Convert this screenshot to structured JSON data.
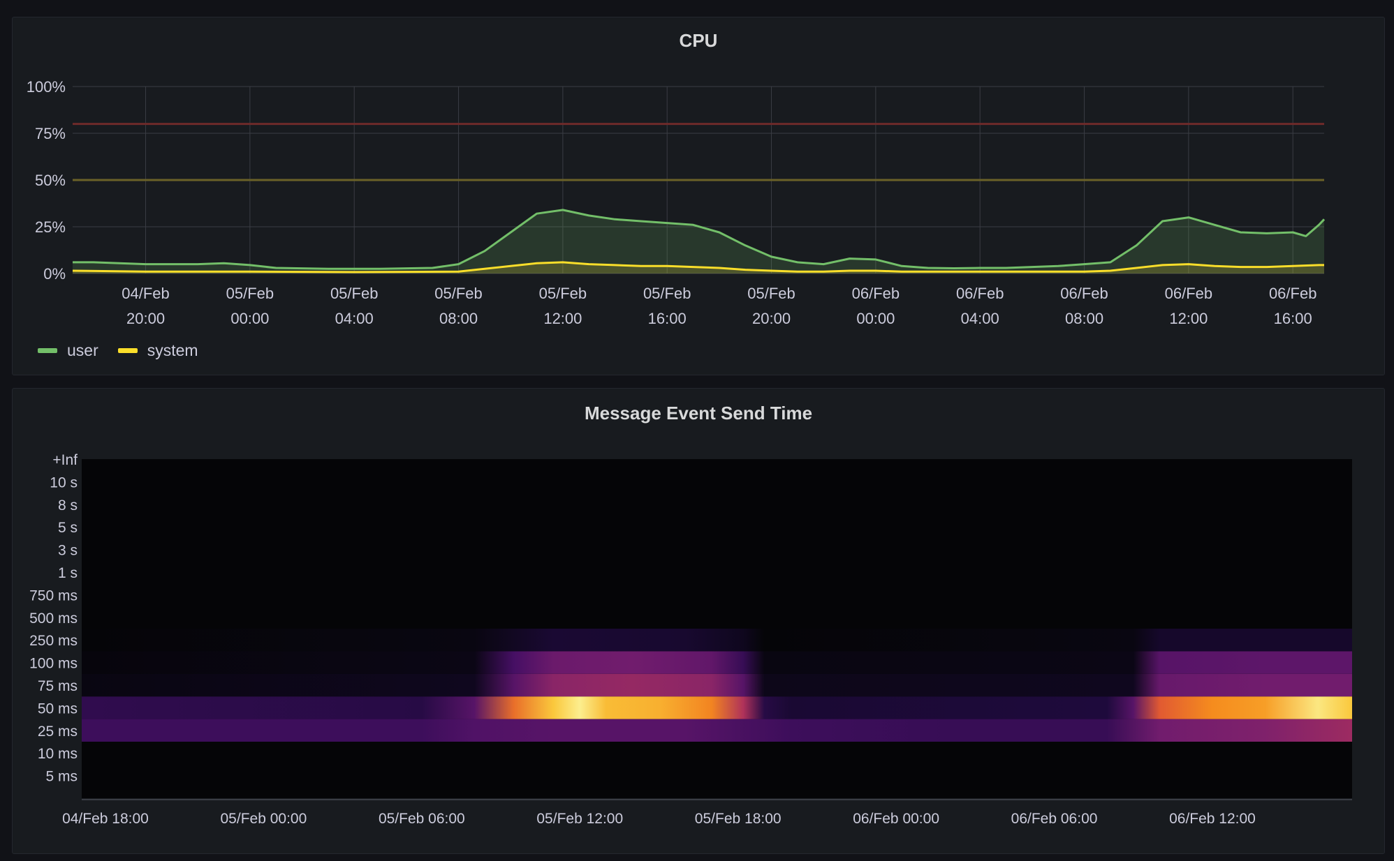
{
  "colors": {
    "user": "#73bf69",
    "system": "#fade2a",
    "threshold_red": "#6e2a2a",
    "threshold_yellow": "#6b6228",
    "grid": "#3a3d44",
    "text": "#ccccdc"
  },
  "chart_data": [
    {
      "type": "area",
      "title": "CPU",
      "x_axis_ticks": [
        {
          "line1": "04/Feb",
          "line2": "20:00",
          "hours": 20
        },
        {
          "line1": "05/Feb",
          "line2": "00:00",
          "hours": 24
        },
        {
          "line1": "05/Feb",
          "line2": "04:00",
          "hours": 28
        },
        {
          "line1": "05/Feb",
          "line2": "08:00",
          "hours": 32
        },
        {
          "line1": "05/Feb",
          "line2": "12:00",
          "hours": 36
        },
        {
          "line1": "05/Feb",
          "line2": "16:00",
          "hours": 40
        },
        {
          "line1": "05/Feb",
          "line2": "20:00",
          "hours": 44
        },
        {
          "line1": "06/Feb",
          "line2": "00:00",
          "hours": 48
        },
        {
          "line1": "06/Feb",
          "line2": "04:00",
          "hours": 52
        },
        {
          "line1": "06/Feb",
          "line2": "08:00",
          "hours": 56
        },
        {
          "line1": "06/Feb",
          "line2": "12:00",
          "hours": 60
        },
        {
          "line1": "06/Feb",
          "line2": "16:00",
          "hours": 64
        }
      ],
      "x_range_hours": [
        17.2,
        65.2
      ],
      "y_ticks": [
        "0%",
        "25%",
        "50%",
        "75%",
        "100%"
      ],
      "ylim": [
        0,
        100
      ],
      "thresholds": [
        {
          "value": 80,
          "color": "#6e2a2a"
        },
        {
          "value": 50,
          "color": "#6b6228"
        }
      ],
      "legend": [
        {
          "name": "user",
          "color": "#73bf69"
        },
        {
          "name": "system",
          "color": "#fade2a"
        }
      ],
      "series": [
        {
          "name": "user",
          "color": "#73bf69",
          "points": [
            [
              17.2,
              6
            ],
            [
              18,
              6
            ],
            [
              20,
              5
            ],
            [
              22,
              5
            ],
            [
              23,
              5.5
            ],
            [
              24,
              4.5
            ],
            [
              25,
              3
            ],
            [
              27,
              2.5
            ],
            [
              29,
              2.5
            ],
            [
              31,
              3
            ],
            [
              32,
              5
            ],
            [
              33,
              12
            ],
            [
              34,
              22
            ],
            [
              35,
              32
            ],
            [
              36,
              34
            ],
            [
              37,
              31
            ],
            [
              38,
              29
            ],
            [
              39,
              28
            ],
            [
              40,
              27
            ],
            [
              41,
              26
            ],
            [
              42,
              22
            ],
            [
              43,
              15
            ],
            [
              44,
              9
            ],
            [
              45,
              6
            ],
            [
              46,
              5
            ],
            [
              47,
              8
            ],
            [
              48,
              7.5
            ],
            [
              49,
              4
            ],
            [
              50,
              3
            ],
            [
              51,
              2.8
            ],
            [
              52,
              3
            ],
            [
              53,
              3
            ],
            [
              54,
              3.5
            ],
            [
              55,
              4
            ],
            [
              56,
              5
            ],
            [
              57,
              6
            ],
            [
              58,
              15
            ],
            [
              59,
              28
            ],
            [
              60,
              30
            ],
            [
              61,
              26
            ],
            [
              62,
              22
            ],
            [
              63,
              21.5
            ],
            [
              64,
              22
            ],
            [
              64.5,
              20
            ],
            [
              65,
              26
            ],
            [
              65.2,
              29
            ]
          ]
        },
        {
          "name": "system",
          "color": "#fade2a",
          "points": [
            [
              17.2,
              1.5
            ],
            [
              20,
              1
            ],
            [
              24,
              1
            ],
            [
              28,
              0.8
            ],
            [
              32,
              1
            ],
            [
              33,
              2.5
            ],
            [
              34,
              4
            ],
            [
              35,
              5.5
            ],
            [
              36,
              6
            ],
            [
              37,
              5
            ],
            [
              38,
              4.5
            ],
            [
              39,
              4
            ],
            [
              40,
              4
            ],
            [
              41,
              3.5
            ],
            [
              42,
              3
            ],
            [
              43,
              2
            ],
            [
              44,
              1.5
            ],
            [
              45,
              1
            ],
            [
              46,
              1
            ],
            [
              47,
              1.5
            ],
            [
              48,
              1.5
            ],
            [
              49,
              1
            ],
            [
              52,
              1
            ],
            [
              56,
              1
            ],
            [
              57,
              1.5
            ],
            [
              58,
              3
            ],
            [
              59,
              4.5
            ],
            [
              60,
              5
            ],
            [
              61,
              4
            ],
            [
              62,
              3.5
            ],
            [
              63,
              3.5
            ],
            [
              64,
              4
            ],
            [
              65,
              4.5
            ],
            [
              65.2,
              4.5
            ]
          ]
        }
      ]
    },
    {
      "type": "heatmap",
      "title": "Message Event Send Time",
      "y_buckets": [
        "5 ms",
        "10 ms",
        "25 ms",
        "50 ms",
        "75 ms",
        "100 ms",
        "250 ms",
        "500 ms",
        "750 ms",
        "1 s",
        "3 s",
        "5 s",
        "8 s",
        "10 s",
        "+Inf"
      ],
      "x_axis_ticks": [
        {
          "label": "04/Feb 18:00",
          "hours": 18
        },
        {
          "label": "05/Feb 00:00",
          "hours": 24
        },
        {
          "label": "05/Feb 06:00",
          "hours": 30
        },
        {
          "label": "05/Feb 12:00",
          "hours": 36
        },
        {
          "label": "05/Feb 18:00",
          "hours": 42
        },
        {
          "label": "06/Feb 00:00",
          "hours": 48
        },
        {
          "label": "06/Feb 06:00",
          "hours": 54
        },
        {
          "label": "06/Feb 12:00",
          "hours": 60
        }
      ],
      "x_range_hours": [
        17.1,
        65.3
      ],
      "colorscale": "inferno",
      "cells_note": "intensity 0-1 per time segment per bucket index",
      "bands": [
        {
          "bucket": "50 ms",
          "segments": [
            [
              17.1,
              0.18
            ],
            [
              30,
              0.15
            ],
            [
              32,
              0.3
            ],
            [
              33.5,
              0.75
            ],
            [
              35,
              0.92
            ],
            [
              36,
              0.98
            ],
            [
              37,
              0.9
            ],
            [
              39,
              0.88
            ],
            [
              41,
              0.8
            ],
            [
              42.2,
              0.55
            ],
            [
              43,
              0.15
            ],
            [
              44,
              0.1
            ],
            [
              56,
              0.12
            ],
            [
              57,
              0.3
            ],
            [
              58,
              0.7
            ],
            [
              60,
              0.82
            ],
            [
              62,
              0.85
            ],
            [
              64,
              0.97
            ],
            [
              65.3,
              0.92
            ]
          ]
        },
        {
          "bucket": "25 ms",
          "segments": [
            [
              17.1,
              0.22
            ],
            [
              30,
              0.22
            ],
            [
              32,
              0.28
            ],
            [
              35,
              0.3
            ],
            [
              40,
              0.3
            ],
            [
              44,
              0.22
            ],
            [
              50,
              0.2
            ],
            [
              56,
              0.2
            ],
            [
              58,
              0.38
            ],
            [
              62,
              0.42
            ],
            [
              65.3,
              0.5
            ]
          ]
        },
        {
          "bucket": "75 ms",
          "segments": [
            [
              17.1,
              0.02
            ],
            [
              32,
              0.05
            ],
            [
              33.5,
              0.3
            ],
            [
              35,
              0.45
            ],
            [
              38,
              0.48
            ],
            [
              41,
              0.45
            ],
            [
              42.2,
              0.3
            ],
            [
              43,
              0.04
            ],
            [
              57,
              0.05
            ],
            [
              58,
              0.35
            ],
            [
              62,
              0.38
            ],
            [
              65.3,
              0.38
            ]
          ]
        },
        {
          "bucket": "100 ms",
          "segments": [
            [
              17.1,
              0.01
            ],
            [
              32,
              0.03
            ],
            [
              33.5,
              0.25
            ],
            [
              35,
              0.36
            ],
            [
              38,
              0.38
            ],
            [
              41,
              0.33
            ],
            [
              42.2,
              0.2
            ],
            [
              43,
              0.02
            ],
            [
              57,
              0.03
            ],
            [
              58,
              0.3
            ],
            [
              62,
              0.32
            ],
            [
              65.3,
              0.32
            ]
          ]
        },
        {
          "bucket": "250 ms",
          "segments": [
            [
              17.1,
              0.0
            ],
            [
              32,
              0.02
            ],
            [
              33.5,
              0.06
            ],
            [
              35,
              0.1
            ],
            [
              40,
              0.09
            ],
            [
              42.2,
              0.05
            ],
            [
              43,
              0.0
            ],
            [
              57,
              0.02
            ],
            [
              58,
              0.08
            ],
            [
              65.3,
              0.08
            ]
          ]
        }
      ]
    }
  ]
}
